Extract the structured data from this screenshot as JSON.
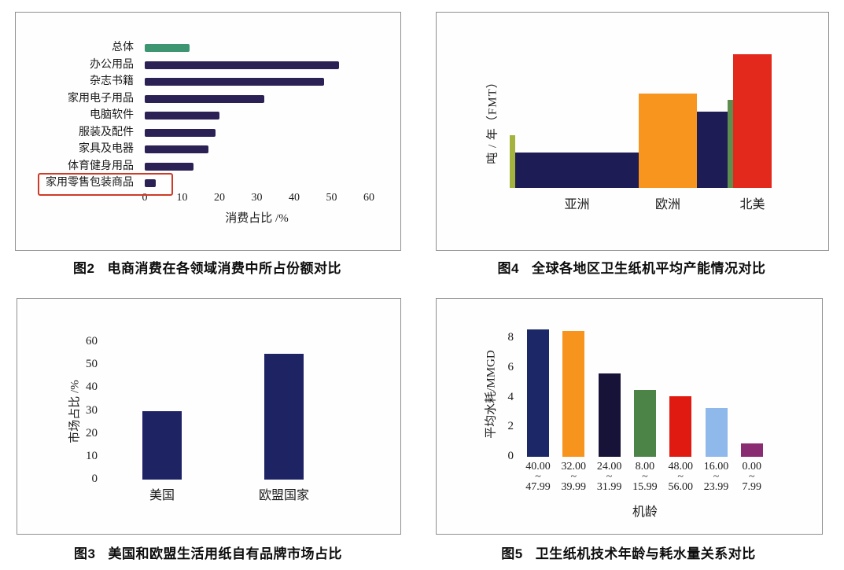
{
  "page_background": "#ffffff",
  "chart_data": [
    {
      "id": "fig2",
      "type": "bar",
      "orientation": "horizontal",
      "figure_label": "图2",
      "title": "电商消费在各领域消费中所占份额对比",
      "categories": [
        "总体",
        "办公用品",
        "杂志书籍",
        "家用电子用品",
        "电脑软件",
        "服装及配件",
        "家具及电器",
        "体育健身用品",
        "家用零售包装商品"
      ],
      "values": [
        12,
        52,
        48,
        32,
        20,
        19,
        17,
        13,
        3
      ],
      "xlabel": "消费占比 /%",
      "xticks": [
        0,
        10,
        20,
        30,
        40,
        50,
        60
      ],
      "xlim": [
        0,
        60
      ],
      "grid": "off",
      "colors": {
        "first_bar": "#3E9571",
        "bar": "#2B2155"
      },
      "highlight": {
        "category": "家用零售包装商品",
        "box_color": "#CE3B28"
      }
    },
    {
      "id": "fig4",
      "type": "bar",
      "orientation": "vertical",
      "figure_label": "图4",
      "title": "全球各地区卫生纸机平均产能情况对比",
      "ylabel": "吨 / 年（FMT）",
      "value_scale": "relative bar heights 0-100, y-axis has no numeric ticks; bar widths vary",
      "grid": "off",
      "groups": [
        {
          "label": "亚洲",
          "bars": [
            {
              "color": "#A4B23E",
              "rel_width": 7,
              "rel_height": 31
            },
            {
              "color": "#1E1C55",
              "rel_width": 157,
              "rel_height": 21
            }
          ]
        },
        {
          "label": "欧洲",
          "bars": [
            {
              "color": "#F8951F",
              "rel_width": 74,
              "rel_height": 56
            }
          ]
        },
        {
          "label": "北美",
          "bars": [
            {
              "color": "#1E1C55",
              "rel_width": 39,
              "rel_height": 45
            },
            {
              "color": "#5E8E4F",
              "rel_width": 7,
              "rel_height": 52
            },
            {
              "color": "#E2291C",
              "rel_width": 49,
              "rel_height": 79
            }
          ]
        }
      ]
    },
    {
      "id": "fig3",
      "type": "bar",
      "orientation": "vertical",
      "figure_label": "图3",
      "title": "美国和欧盟生活用纸自有品牌市场占比",
      "categories": [
        "美国",
        "欧盟国家"
      ],
      "values": [
        30,
        55
      ],
      "ylabel": "市场占比 /%",
      "yticks": [
        0,
        10,
        20,
        30,
        40,
        50,
        60
      ],
      "ylim": [
        0,
        60
      ],
      "grid": "off",
      "colors": {
        "bar": "#1D2363"
      }
    },
    {
      "id": "fig5",
      "type": "bar",
      "orientation": "vertical",
      "figure_label": "图5",
      "title": "卫生纸机技术年龄与耗水量关系对比",
      "categories_ranges": [
        {
          "from": "40.00",
          "to": "47.99"
        },
        {
          "from": "32.00",
          "to": "39.99"
        },
        {
          "from": "24.00",
          "to": "31.99"
        },
        {
          "from": "8.00",
          "to": "15.99"
        },
        {
          "from": "48.00",
          "to": "56.00"
        },
        {
          "from": "16.00",
          "to": "23.99"
        },
        {
          "from": "0.00",
          "to": "7.99"
        }
      ],
      "range_separator": "~",
      "values": [
        8.6,
        8.5,
        5.6,
        4.5,
        4.1,
        3.3,
        0.9
      ],
      "bar_colors": [
        "#1B2767",
        "#F7941D",
        "#171238",
        "#4C8346",
        "#E01A10",
        "#8FB8EB",
        "#8A2C72"
      ],
      "ylabel": "平均水耗/MMGD",
      "xlabel": "机龄",
      "yticks": [
        0,
        2,
        4,
        6,
        8
      ],
      "ylim": [
        0,
        9
      ],
      "grid": "off"
    }
  ]
}
